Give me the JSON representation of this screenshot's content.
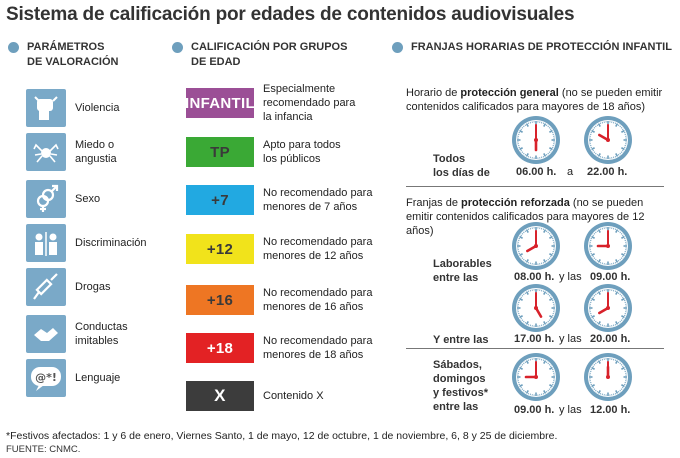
{
  "title": "Sistema de calificación por edades de contenidos audiovisuales",
  "sections": {
    "params": "PARÁMETROS\nDE VALORACIÓN",
    "groups": "CALIFICACIÓN POR GRUPOS\nDE EDAD",
    "schedule": "FRANJAS HORARIAS DE PROTECCIÓN INFANTIL"
  },
  "params": [
    {
      "label": "Violencia",
      "icon": "fist-icon"
    },
    {
      "label": "Miedo o\nangustia",
      "icon": "spider-icon"
    },
    {
      "label": "Sexo",
      "icon": "gender-symbols-icon"
    },
    {
      "label": "Discriminación",
      "icon": "people-icon"
    },
    {
      "label": "Drogas",
      "icon": "syringe-icon"
    },
    {
      "label": "Conductas\nimitables",
      "icon": "handshake-icon"
    },
    {
      "label": "Lenguaje",
      "icon": "swearing-icon"
    }
  ],
  "ratings": [
    {
      "badge": "INFANTIL",
      "color": "#9b4f96",
      "desc": "Especialmente\nrecomendado para\nla infancia"
    },
    {
      "badge": "TP",
      "color": "#3aa935",
      "desc": "Apto para todos\nlos públicos"
    },
    {
      "badge": "+7",
      "color": "#22a9e1",
      "desc": "No recomendado para\nmenores de 7 años"
    },
    {
      "badge": "+12",
      "color": "#f1e31b",
      "desc": "No recomendado para\nmenores de 12 años"
    },
    {
      "badge": "+16",
      "color": "#ee7623",
      "desc": "No recomendado para\nmenores de 16 años"
    },
    {
      "badge": "+18",
      "color": "#e32224",
      "desc": "No recomendado para\nmenores de 18 años"
    },
    {
      "badge": "X",
      "color": "#3c3c3c",
      "desc": "Contenido X"
    }
  ],
  "general": {
    "pre": "Horario de ",
    "bold": "protección general",
    "post": " (no se pueden emitir contenidos calificados para mayores de 18 años)",
    "label": "Todos\nlos días de",
    "from": "06.00 h.",
    "sep": "a",
    "to": "22.00 h."
  },
  "reinforced": {
    "pre": "Franjas de ",
    "bold": "protección reforzada",
    "post": " (no se pueden emitir contenidos calificados para mayores de 12 años)",
    "weekdays_label": "Laborables\nentre las",
    "weekdays_from": "08.00 h.",
    "weekdays_sep": "y las",
    "weekdays_to": "09.00 h.",
    "and_label": "Y entre las",
    "and_from": "17.00 h.",
    "and_sep": "y las",
    "and_to": "20.00 h.",
    "weekend_label": "Sábados,\ndomingos\ny festivos*\nentre las",
    "weekend_from": "09.00 h.",
    "weekend_sep": "y las",
    "weekend_to": "12.00 h."
  },
  "clock_times": [
    "06:00",
    "22:00",
    "08:00",
    "09:00",
    "17:00",
    "20:00",
    "09:00",
    "12:00"
  ],
  "footnote": "*Festivos afectados: 1 y 6 de enero, Viernes Santo, 1 de mayo, 12 de octubre, 1 de noviembre, 6, 8 y 25 de diciembre.",
  "source": "FUENTE: CNMC."
}
